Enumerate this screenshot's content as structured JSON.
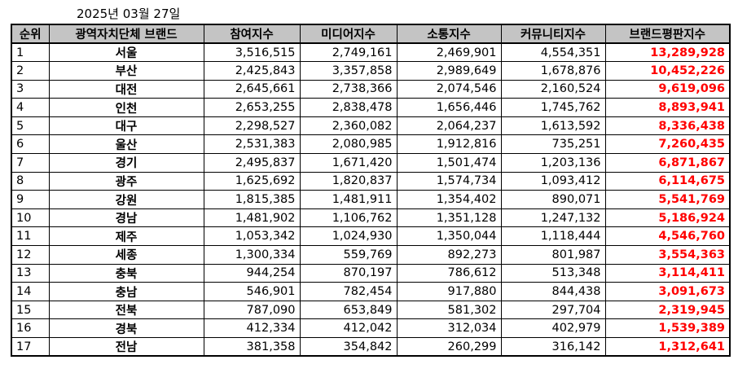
{
  "date": "2025년 03월 27일",
  "headers": {
    "rank": "순위",
    "brand": "광역자치단체 브랜드",
    "participation": "참여지수",
    "media": "미디어지수",
    "communication": "소통지수",
    "community": "커뮤니티지수",
    "reputation": "브랜드평판지수"
  },
  "colors": {
    "header_bg": "#c4c4c4",
    "total_text": "#ff0000",
    "border": "#000000"
  },
  "rows": [
    {
      "rank": "1",
      "brand": "서울",
      "participation": "3,516,515",
      "media": "2,749,161",
      "communication": "2,469,901",
      "community": "4,554,351",
      "reputation": "13,289,928"
    },
    {
      "rank": "2",
      "brand": "부산",
      "participation": "2,425,843",
      "media": "3,357,858",
      "communication": "2,989,649",
      "community": "1,678,876",
      "reputation": "10,452,226"
    },
    {
      "rank": "3",
      "brand": "대전",
      "participation": "2,645,661",
      "media": "2,738,366",
      "communication": "2,074,546",
      "community": "2,160,524",
      "reputation": "9,619,096"
    },
    {
      "rank": "4",
      "brand": "인천",
      "participation": "2,653,255",
      "media": "2,838,478",
      "communication": "1,656,446",
      "community": "1,745,762",
      "reputation": "8,893,941"
    },
    {
      "rank": "5",
      "brand": "대구",
      "participation": "2,298,527",
      "media": "2,360,082",
      "communication": "2,064,237",
      "community": "1,613,592",
      "reputation": "8,336,438"
    },
    {
      "rank": "6",
      "brand": "울산",
      "participation": "2,531,383",
      "media": "2,080,985",
      "communication": "1,912,816",
      "community": "735,251",
      "reputation": "7,260,435"
    },
    {
      "rank": "7",
      "brand": "경기",
      "participation": "2,495,837",
      "media": "1,671,420",
      "communication": "1,501,474",
      "community": "1,203,136",
      "reputation": "6,871,867"
    },
    {
      "rank": "8",
      "brand": "광주",
      "participation": "1,625,692",
      "media": "1,820,837",
      "communication": "1,574,734",
      "community": "1,093,412",
      "reputation": "6,114,675"
    },
    {
      "rank": "9",
      "brand": "강원",
      "participation": "1,815,385",
      "media": "1,481,911",
      "communication": "1,354,402",
      "community": "890,071",
      "reputation": "5,541,769"
    },
    {
      "rank": "10",
      "brand": "경남",
      "participation": "1,481,902",
      "media": "1,106,762",
      "communication": "1,351,128",
      "community": "1,247,132",
      "reputation": "5,186,924"
    },
    {
      "rank": "11",
      "brand": "제주",
      "participation": "1,053,342",
      "media": "1,024,930",
      "communication": "1,350,044",
      "community": "1,118,444",
      "reputation": "4,546,760"
    },
    {
      "rank": "12",
      "brand": "세종",
      "participation": "1,300,334",
      "media": "559,769",
      "communication": "892,273",
      "community": "801,987",
      "reputation": "3,554,363"
    },
    {
      "rank": "13",
      "brand": "충북",
      "participation": "944,254",
      "media": "870,197",
      "communication": "786,612",
      "community": "513,348",
      "reputation": "3,114,411"
    },
    {
      "rank": "14",
      "brand": "충남",
      "participation": "546,901",
      "media": "782,454",
      "communication": "917,880",
      "community": "844,438",
      "reputation": "3,091,673"
    },
    {
      "rank": "15",
      "brand": "전북",
      "participation": "787,090",
      "media": "653,849",
      "communication": "581,302",
      "community": "297,704",
      "reputation": "2,319,945"
    },
    {
      "rank": "16",
      "brand": "경북",
      "participation": "412,334",
      "media": "412,042",
      "communication": "312,034",
      "community": "402,979",
      "reputation": "1,539,389"
    },
    {
      "rank": "17",
      "brand": "전남",
      "participation": "381,358",
      "media": "354,842",
      "communication": "260,299",
      "community": "316,142",
      "reputation": "1,312,641"
    }
  ]
}
